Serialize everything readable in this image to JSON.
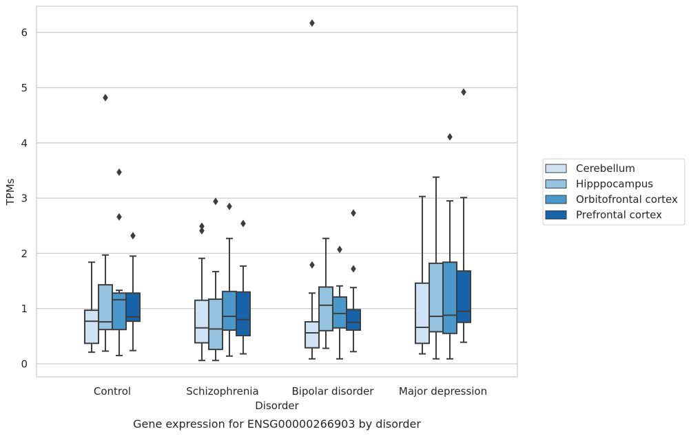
{
  "chart_data": {
    "type": "box",
    "title": "",
    "caption": "Gene expression for ENSG00000266903 by disorder",
    "xlabel": "Disorder",
    "ylabel": "TPMs",
    "ylim": [
      -0.25,
      6.5
    ],
    "yticks": [
      0,
      1,
      2,
      3,
      4,
      5,
      6
    ],
    "grid": "horizontal",
    "legend_position": "right",
    "categories": [
      "Control",
      "Schizophrenia",
      "Bipolar disorder",
      "Major depression"
    ],
    "series": [
      {
        "name": "Cerebellum",
        "color": "#d0e1f2",
        "boxes": [
          {
            "whisker_low": 0.21,
            "q1": 0.37,
            "median": 0.77,
            "q3": 0.97,
            "whisker_high": 1.84,
            "outliers": []
          },
          {
            "whisker_low": 0.06,
            "q1": 0.38,
            "median": 0.65,
            "q3": 1.15,
            "whisker_high": 1.91,
            "outliers": [
              2.41,
              2.49
            ]
          },
          {
            "whisker_low": 0.09,
            "q1": 0.29,
            "median": 0.56,
            "q3": 0.76,
            "whisker_high": 1.28,
            "outliers": [
              1.79,
              6.17
            ]
          },
          {
            "whisker_low": 0.18,
            "q1": 0.37,
            "median": 0.66,
            "q3": 1.46,
            "whisker_high": 3.03,
            "outliers": []
          }
        ]
      },
      {
        "name": "Hipppocampus",
        "color": "#94c4df",
        "boxes": [
          {
            "whisker_low": 0.23,
            "q1": 0.62,
            "median": 0.76,
            "q3": 1.43,
            "whisker_high": 1.97,
            "outliers": [
              4.82
            ]
          },
          {
            "whisker_low": 0.06,
            "q1": 0.26,
            "median": 0.63,
            "q3": 1.17,
            "whisker_high": 1.67,
            "outliers": [
              2.94
            ]
          },
          {
            "whisker_low": 0.28,
            "q1": 0.6,
            "median": 1.06,
            "q3": 1.39,
            "whisker_high": 2.27,
            "outliers": []
          },
          {
            "whisker_low": 0.09,
            "q1": 0.58,
            "median": 0.86,
            "q3": 1.82,
            "whisker_high": 3.38,
            "outliers": []
          }
        ]
      },
      {
        "name": "Orbitofrontal cortex",
        "color": "#4a98c9",
        "boxes": [
          {
            "whisker_low": 0.15,
            "q1": 0.62,
            "median": 1.16,
            "q3": 1.28,
            "whisker_high": 1.33,
            "outliers": [
              2.66,
              3.47
            ]
          },
          {
            "whisker_low": 0.14,
            "q1": 0.61,
            "median": 0.86,
            "q3": 1.31,
            "whisker_high": 2.27,
            "outliers": [
              2.85
            ]
          },
          {
            "whisker_low": 0.09,
            "q1": 0.65,
            "median": 0.91,
            "q3": 1.21,
            "whisker_high": 1.41,
            "outliers": [
              2.07
            ]
          },
          {
            "whisker_low": 0.09,
            "q1": 0.55,
            "median": 0.88,
            "q3": 1.84,
            "whisker_high": 2.95,
            "outliers": [
              4.11
            ]
          }
        ]
      },
      {
        "name": "Prefrontal cortex",
        "color": "#1764ab",
        "boxes": [
          {
            "whisker_low": 0.24,
            "q1": 0.77,
            "median": 0.85,
            "q3": 1.28,
            "whisker_high": 1.95,
            "outliers": [
              2.32
            ]
          },
          {
            "whisker_low": 0.18,
            "q1": 0.51,
            "median": 0.8,
            "q3": 1.3,
            "whisker_high": 1.77,
            "outliers": [
              2.54
            ]
          },
          {
            "whisker_low": 0.22,
            "q1": 0.61,
            "median": 0.75,
            "q3": 0.98,
            "whisker_high": 1.38,
            "outliers": [
              1.72,
              2.73
            ]
          },
          {
            "whisker_low": 0.39,
            "q1": 0.75,
            "median": 0.95,
            "q3": 1.68,
            "whisker_high": 3.01,
            "outliers": [
              4.92
            ]
          }
        ]
      }
    ]
  }
}
